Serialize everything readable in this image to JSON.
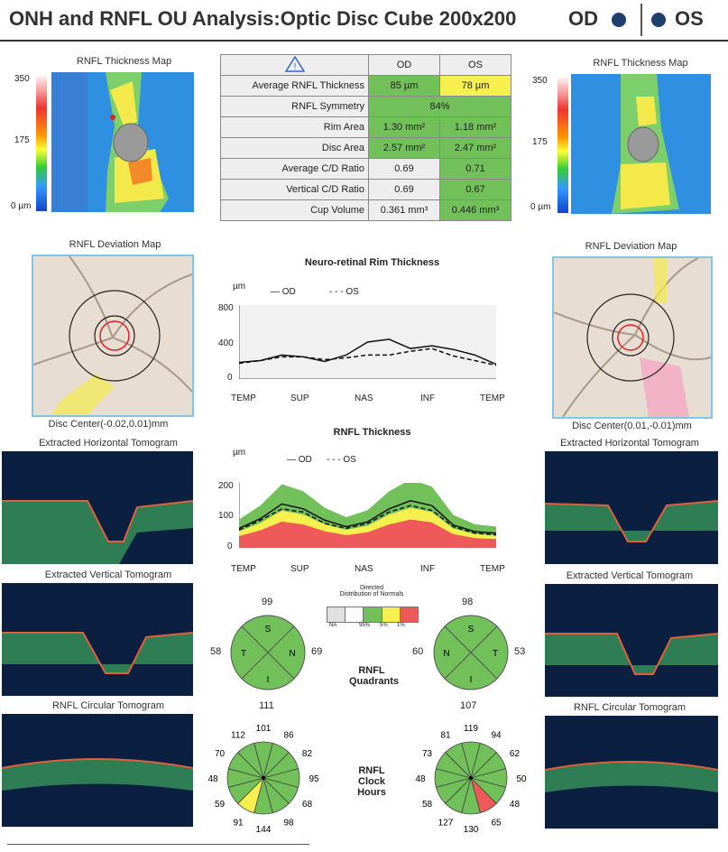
{
  "header": {
    "title": "ONH and RNFL OU Analysis:Optic Disc Cube 200x200",
    "od": "OD",
    "os": "OS"
  },
  "thickness_map": {
    "label": "RNFL Thickness Map",
    "scale_max": "350",
    "scale_mid": "175",
    "scale_min": "0 µm"
  },
  "table": {
    "warning_icon": "warning-triangle-icon",
    "col_od": "OD",
    "col_os": "OS",
    "rows": [
      {
        "label": "Average RNFL Thickness",
        "od": "85 µm",
        "os": "78 µm"
      },
      {
        "label": "RNFL Symmetry",
        "both": "84%"
      },
      {
        "label": "Rim Area",
        "od": "1.30 mm²",
        "os": "1.18 mm²"
      },
      {
        "label": "Disc Area",
        "od": "2.57 mm²",
        "os": "2.47 mm²"
      },
      {
        "label": "Average C/D Ratio",
        "od": "0.69",
        "os": "0.71"
      },
      {
        "label": "Vertical C/D Ratio",
        "od": "0.69",
        "os": "0.67"
      },
      {
        "label": "Cup Volume",
        "od": "0.361 mm³",
        "os": "0.446 mm³"
      }
    ]
  },
  "deviation_map": {
    "label": "RNFL Deviation Map",
    "od_center": "Disc Center(-0.02,0.01)mm",
    "os_center": "Disc Center(0.01,-0.01)mm"
  },
  "tomograms": {
    "horizontal": "Extracted Horizontal Tomogram",
    "vertical": "Extracted Vertical Tomogram",
    "circular": "RNFL Circular Tomogram"
  },
  "rim_chart": {
    "title": "Neuro-retinal Rim Thickness",
    "unit": "µm",
    "legend_od": "OD",
    "legend_os": "OS",
    "ticks": [
      "800",
      "400",
      "0"
    ],
    "xlabels": [
      "TEMP",
      "SUP",
      "NAS",
      "INF",
      "TEMP"
    ]
  },
  "rnfl_chart": {
    "title": "RNFL Thickness",
    "unit": "µm",
    "legend_od": "OD",
    "legend_os": "OS",
    "ticks": [
      "200",
      "100",
      "0"
    ],
    "xlabels": [
      "TEMP",
      "SUP",
      "NAS",
      "INF",
      "TEMP"
    ]
  },
  "chart_data": [
    {
      "type": "line",
      "title": "Neuro-retinal Rim Thickness",
      "x": [
        0,
        1,
        2,
        3,
        4,
        5,
        6,
        7,
        8,
        9,
        10,
        11,
        12
      ],
      "ylim": [
        0,
        800
      ],
      "series": [
        {
          "name": "OD",
          "values": [
            180,
            200,
            260,
            240,
            190,
            260,
            400,
            430,
            330,
            360,
            320,
            260,
            160
          ]
        },
        {
          "name": "OS",
          "values": [
            170,
            200,
            240,
            240,
            210,
            230,
            260,
            260,
            300,
            330,
            250,
            200,
            150
          ]
        }
      ]
    },
    {
      "type": "area",
      "title": "RNFL Thickness",
      "x": [
        0,
        1,
        2,
        3,
        4,
        5,
        6,
        7,
        8,
        9,
        10,
        11,
        12
      ],
      "ylim": [
        0,
        200
      ],
      "series": [
        {
          "name": "OD",
          "values": [
            60,
            90,
            135,
            120,
            85,
            65,
            80,
            120,
            145,
            130,
            70,
            50,
            45
          ]
        },
        {
          "name": "OS",
          "values": [
            55,
            85,
            120,
            110,
            75,
            60,
            75,
            110,
            130,
            115,
            65,
            45,
            40
          ]
        }
      ]
    }
  ],
  "legend": {
    "title": "Distribution of Normals",
    "title_prefix": "Directed",
    "items": [
      "NA",
      "95%",
      "5%",
      "1%"
    ]
  },
  "quadrants": {
    "label_line1": "RNFL",
    "label_line2": "Quadrants",
    "od": {
      "top": "99",
      "left": "58",
      "right": "69",
      "bottom": "111",
      "s": "S",
      "t": "T",
      "n": "N",
      "i": "I"
    },
    "os": {
      "top": "98",
      "left": "60",
      "right": "53",
      "bottom": "107",
      "s": "S",
      "t": "T",
      "n": "N",
      "i": "I"
    }
  },
  "clock": {
    "label_line1": "RNFL",
    "label_line2": "Clock",
    "label_line3": "Hours",
    "od": [
      "101",
      "86",
      "82",
      "95",
      "68",
      "98",
      "144",
      "91",
      "59",
      "48",
      "70",
      "112"
    ],
    "os": [
      "119",
      "94",
      "62",
      "50",
      "48",
      "65",
      "130",
      "127",
      "58",
      "48",
      "73",
      "81"
    ]
  },
  "colors": {
    "green": "#71c05a",
    "yellow": "#f5f04d",
    "red": "#ee5a5a",
    "gray": "#e0e0e0"
  }
}
